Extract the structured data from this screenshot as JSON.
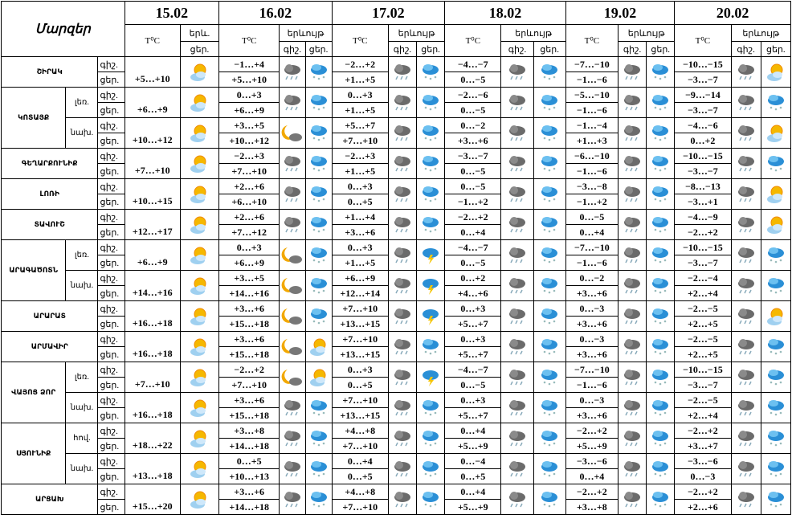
{
  "header": {
    "title": "Մարզեր",
    "dates": [
      "15.02",
      "16.02",
      "17.02",
      "18.02",
      "19.02",
      "20.02"
    ],
    "temp": "T⁰C",
    "phen_short": "երև.",
    "phen": "երևույթ",
    "night": "գիշ.",
    "day": "ցեր."
  },
  "regions": [
    {
      "name": "ՇԻՐԱԿ",
      "parts": [
        {
          "t15": "+5…+10",
          "temps": [
            [
              "−1…+4",
              "+5…+10"
            ],
            [
              "−2…+2",
              "+1…+5"
            ],
            [
              "−4…−7",
              "0…−5"
            ],
            [
              "−7…−10",
              "−1…−6"
            ],
            [
              "−10…−15",
              "−3…−7"
            ]
          ]
        }
      ]
    },
    {
      "name": "ԿՈՏԱՅՔ",
      "parts": [
        {
          "sub": "լեռ.",
          "t15": "+6…+9",
          "temps": [
            [
              "0…+3",
              "+6…+9"
            ],
            [
              "0…+3",
              "+1…+5"
            ],
            [
              "−2…−6",
              "0…−5"
            ],
            [
              "−5…−10",
              "−1…−6"
            ],
            [
              "−9…−14",
              "−3…−7"
            ]
          ]
        },
        {
          "sub": "նախ.",
          "t15": "+10…+12",
          "temps": [
            [
              "+3…+5",
              "+10…+12"
            ],
            [
              "+5…+7",
              "+7…+10"
            ],
            [
              "0…−2",
              "+3…+6"
            ],
            [
              "−1…−4",
              "+1…+3"
            ],
            [
              "−4…−6",
              "0…+2"
            ]
          ]
        }
      ]
    },
    {
      "name": "ԳԵՂԱՐՔՈՒՆԻՔ",
      "parts": [
        {
          "t15": "+7…+10",
          "temps": [
            [
              "−2…+3",
              "+7…+10"
            ],
            [
              "−2…+3",
              "+1…+5"
            ],
            [
              "−3…−7",
              "0…−5"
            ],
            [
              "−6…−10",
              "−1…−6"
            ],
            [
              "−10…−15",
              "−3…−7"
            ]
          ]
        }
      ]
    },
    {
      "name": "ԼՈՌԻ",
      "parts": [
        {
          "t15": "+10…+15",
          "temps": [
            [
              "+2…+6",
              "+6…+10"
            ],
            [
              "0…+3",
              "0…+5"
            ],
            [
              "0…−5",
              "−1…+2"
            ],
            [
              "−3…−8",
              "−1…+2"
            ],
            [
              "−8…−13",
              "−3…+1"
            ]
          ]
        }
      ]
    },
    {
      "name": "ՏԱՎՈՒՇ",
      "parts": [
        {
          "t15": "+12…+17",
          "temps": [
            [
              "+2…+6",
              "+7…+12"
            ],
            [
              "+1…+4",
              "+3…+6"
            ],
            [
              "−2…+2",
              "0…+4"
            ],
            [
              "0…−5",
              "0…+4"
            ],
            [
              "−4…−9",
              "−2…+2"
            ]
          ]
        }
      ]
    },
    {
      "name": "ԱՐԱԳԱԾՈՏՆ",
      "parts": [
        {
          "sub": "լեռ.",
          "t15": "+6…+9",
          "temps": [
            [
              "0…+3",
              "+6…+9"
            ],
            [
              "0…+3",
              "+1…+5"
            ],
            [
              "−4…−7",
              "0…−5"
            ],
            [
              "−7…−10",
              "−1…−6"
            ],
            [
              "−10…−15",
              "−3…−7"
            ]
          ]
        },
        {
          "sub": "նախ.",
          "t15": "+14…+16",
          "temps": [
            [
              "+3…+5",
              "+14…+16"
            ],
            [
              "+6…+9",
              "+12…+14"
            ],
            [
              "0…+2",
              "+4…+6"
            ],
            [
              "0…−2",
              "+3…+6"
            ],
            [
              "−2…−4",
              "+2…+4"
            ]
          ]
        }
      ]
    },
    {
      "name": "ԱՐԱՐԱՏ",
      "parts": [
        {
          "t15": "+16…+18",
          "temps": [
            [
              "+3…+6",
              "+15…+18"
            ],
            [
              "+7…+10",
              "+13…+15"
            ],
            [
              "0…+3",
              "+5…+7"
            ],
            [
              "0…−3",
              "+3…+6"
            ],
            [
              "−2…−5",
              "+2…+5"
            ]
          ]
        }
      ]
    },
    {
      "name": "ԱՐՄԱՎԻՐ",
      "parts": [
        {
          "t15": "+16…+18",
          "temps": [
            [
              "+3…+6",
              "+15…+18"
            ],
            [
              "+7…+10",
              "+13…+15"
            ],
            [
              "0…+3",
              "+5…+7"
            ],
            [
              "0…−3",
              "+3…+6"
            ],
            [
              "−2…−5",
              "+2…+5"
            ]
          ]
        }
      ]
    },
    {
      "name": "ՎԱՅՈՑ ՁՈՐ",
      "parts": [
        {
          "sub": "լեռ.",
          "t15": "+7…+10",
          "temps": [
            [
              "−2…+2",
              "+7…+10"
            ],
            [
              "0…+3",
              "0…+5"
            ],
            [
              "−4…−7",
              "0…−5"
            ],
            [
              "−7…−10",
              "−1…−6"
            ],
            [
              "−10…−15",
              "−3…−7"
            ]
          ]
        },
        {
          "sub": "նախ.",
          "t15": "+16…+18",
          "temps": [
            [
              "+3…+6",
              "+15…+18"
            ],
            [
              "+7…+10",
              "+13…+15"
            ],
            [
              "0…+3",
              "+5…+7"
            ],
            [
              "0…−3",
              "+3…+6"
            ],
            [
              "−2…−5",
              "+2…+4"
            ]
          ]
        }
      ]
    },
    {
      "name": "ՍՅՈՒՆԻՔ",
      "parts": [
        {
          "sub": "հով.",
          "t15": "+18…+22",
          "temps": [
            [
              "+3…+8",
              "+14…+18"
            ],
            [
              "+4…+8",
              "+7…+10"
            ],
            [
              "0…+4",
              "+5…+9"
            ],
            [
              "−2…+2",
              "+5…+9"
            ],
            [
              "−2…+2",
              "+3…+7"
            ]
          ]
        },
        {
          "sub": "նախ.",
          "t15": "+13…+18",
          "temps": [
            [
              "0…+5",
              "+10…+13"
            ],
            [
              "0…+4",
              "0…+5"
            ],
            [
              "0…−4",
              "0…+5"
            ],
            [
              "−3…−6",
              "0…+4"
            ],
            [
              "−3…−6",
              "0…−3"
            ]
          ]
        }
      ]
    },
    {
      "name": "ԱՐՑԱԽ",
      "parts": [
        {
          "t15": "+15…+20",
          "temps": [
            [
              "+3…+6",
              "+14…+18"
            ],
            [
              "+4…+8",
              "+7…+10"
            ],
            [
              "0…+4",
              "+5…+9"
            ],
            [
              "−2…+2",
              "+3…+8"
            ],
            [
              "−2…+2",
              "+2…+6"
            ]
          ]
        }
      ]
    }
  ]
}
